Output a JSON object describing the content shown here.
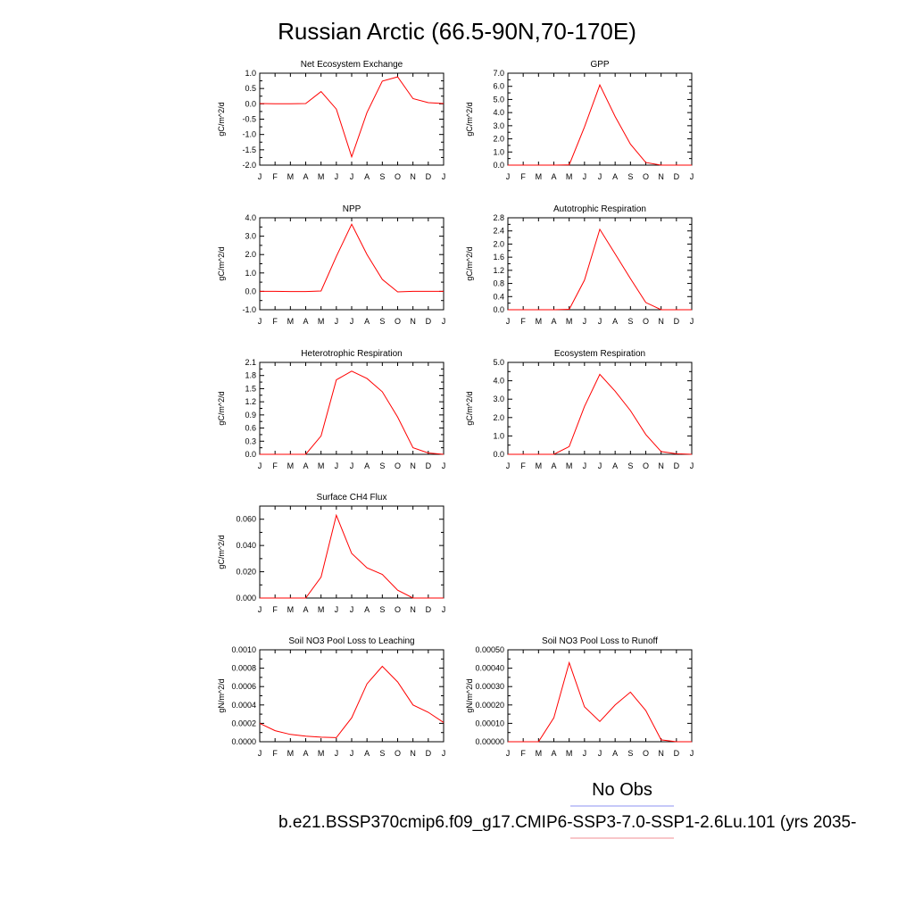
{
  "figure": {
    "title": "Russian Arctic (66.5-90N,70-170E)",
    "legend": [
      {
        "label": "No Obs",
        "color": "#8d93f0"
      },
      {
        "label": "b.e21.BSSP370cmip6.f09_g17.CMIP6-SSP3-7.0-SSP1-2.6Lu.101 (yrs 2035-",
        "color": "#f08d93"
      }
    ],
    "series_color": "#ff0000"
  },
  "chart_data": [
    {
      "type": "line",
      "title": "Net Ecosystem Exchange",
      "ylabel": "gC/m^2/d",
      "x": [
        "J",
        "F",
        "M",
        "A",
        "M",
        "J",
        "J",
        "A",
        "S",
        "O",
        "N",
        "D",
        "J"
      ],
      "ylim": [
        -2.0,
        1.0
      ],
      "yticks": [
        1.0,
        0.5,
        0.0,
        -0.5,
        -1.0,
        -1.5,
        -2.0
      ],
      "ytick_labels": [
        "1.0",
        "0.5",
        "0.0",
        "-0.5",
        "-1.0",
        "-1.5",
        "-2.0"
      ],
      "values": [
        0.01,
        0.0,
        0.0,
        0.01,
        0.4,
        -0.17,
        -1.73,
        -0.28,
        0.74,
        0.88,
        0.17,
        0.04,
        0.01
      ]
    },
    {
      "type": "line",
      "title": "GPP",
      "ylabel": "gC/m^2/d",
      "x": [
        "J",
        "F",
        "M",
        "A",
        "M",
        "J",
        "J",
        "A",
        "S",
        "O",
        "N",
        "D",
        "J"
      ],
      "ylim": [
        0.0,
        7.0
      ],
      "yticks": [
        7.0,
        6.0,
        5.0,
        4.0,
        3.0,
        2.0,
        1.0,
        0.0
      ],
      "ytick_labels": [
        "7.0",
        "6.0",
        "5.0",
        "4.0",
        "3.0",
        "2.0",
        "1.0",
        "0.0"
      ],
      "values": [
        0.0,
        0.0,
        0.0,
        0.0,
        0.02,
        2.9,
        6.1,
        3.7,
        1.6,
        0.2,
        0.0,
        0.0,
        0.0
      ]
    },
    {
      "type": "line",
      "title": "NPP",
      "ylabel": "gC/m^2/d",
      "x": [
        "J",
        "F",
        "M",
        "A",
        "M",
        "J",
        "J",
        "A",
        "S",
        "O",
        "N",
        "D",
        "J"
      ],
      "ylim": [
        -1.0,
        4.0
      ],
      "yticks": [
        4.0,
        3.0,
        2.0,
        1.0,
        0.0,
        -1.0
      ],
      "ytick_labels": [
        "4.0",
        "3.0",
        "2.0",
        "1.0",
        "0.0",
        "-1.0"
      ],
      "values": [
        0.0,
        0.0,
        -0.01,
        -0.01,
        0.02,
        1.9,
        3.65,
        2.0,
        0.65,
        -0.03,
        0.0,
        0.0,
        0.0
      ]
    },
    {
      "type": "line",
      "title": "Autotrophic Respiration",
      "ylabel": "gC/m^2/d",
      "x": [
        "J",
        "F",
        "M",
        "A",
        "M",
        "J",
        "J",
        "A",
        "S",
        "O",
        "N",
        "D",
        "J"
      ],
      "ylim": [
        0.0,
        2.8
      ],
      "yticks": [
        2.8,
        2.4,
        2.0,
        1.6,
        1.2,
        0.8,
        0.4,
        0.0
      ],
      "ytick_labels": [
        "2.8",
        "2.4",
        "2.0",
        "1.6",
        "1.2",
        "0.8",
        "0.4",
        "0.0"
      ],
      "values": [
        0.0,
        0.0,
        0.0,
        0.0,
        0.01,
        0.9,
        2.45,
        1.7,
        0.95,
        0.22,
        0.0,
        0.0,
        0.0
      ]
    },
    {
      "type": "line",
      "title": "Heterotrophic Respiration",
      "ylabel": "gC/m^2/d",
      "x": [
        "J",
        "F",
        "M",
        "A",
        "M",
        "J",
        "J",
        "A",
        "S",
        "O",
        "N",
        "D",
        "J"
      ],
      "ylim": [
        0.0,
        2.1
      ],
      "yticks": [
        2.1,
        1.8,
        1.5,
        1.2,
        0.9,
        0.6,
        0.3,
        0.0
      ],
      "ytick_labels": [
        "2.1",
        "1.8",
        "1.5",
        "1.2",
        "0.9",
        "0.6",
        "0.3",
        "0.0"
      ],
      "values": [
        0.0,
        0.0,
        0.0,
        0.0,
        0.42,
        1.7,
        1.9,
        1.73,
        1.43,
        0.85,
        0.15,
        0.03,
        0.0
      ]
    },
    {
      "type": "line",
      "title": "Ecosystem Respiration",
      "ylabel": "gC/m^2/d",
      "x": [
        "J",
        "F",
        "M",
        "A",
        "M",
        "J",
        "J",
        "A",
        "S",
        "O",
        "N",
        "D",
        "J"
      ],
      "ylim": [
        0.0,
        5.0
      ],
      "yticks": [
        5.0,
        4.0,
        3.0,
        2.0,
        1.0,
        0.0
      ],
      "ytick_labels": [
        "5.0",
        "4.0",
        "3.0",
        "2.0",
        "1.0",
        "0.0"
      ],
      "values": [
        0.0,
        0.0,
        0.0,
        0.0,
        0.42,
        2.6,
        4.35,
        3.43,
        2.38,
        1.08,
        0.15,
        0.03,
        0.0
      ]
    },
    {
      "type": "line",
      "title": "Surface CH4 Flux",
      "ylabel": "gC/m^2/d",
      "x": [
        "J",
        "F",
        "M",
        "A",
        "M",
        "J",
        "J",
        "A",
        "S",
        "O",
        "N",
        "D",
        "J"
      ],
      "ylim": [
        0.0,
        0.07
      ],
      "yticks": [
        0.06,
        0.04,
        0.02,
        0.0
      ],
      "ytick_labels": [
        "0.060",
        "0.040",
        "0.020",
        "0.000"
      ],
      "values": [
        0.0,
        0.0,
        0.0,
        0.0,
        0.016,
        0.063,
        0.034,
        0.023,
        0.018,
        0.006,
        0.0,
        0.0,
        0.0
      ]
    },
    {
      "type": "line",
      "title": "Soil NO3 Pool Loss to Leaching",
      "ylabel": "gN/m^2/d",
      "x": [
        "J",
        "F",
        "M",
        "A",
        "M",
        "J",
        "J",
        "A",
        "S",
        "O",
        "N",
        "D",
        "J"
      ],
      "ylim": [
        0.0,
        0.001
      ],
      "yticks": [
        0.001,
        0.0008,
        0.0006,
        0.0004,
        0.0002,
        0.0
      ],
      "ytick_labels": [
        "0.0010",
        "0.0008",
        "0.0006",
        "0.0004",
        "0.0002",
        "0.0000"
      ],
      "values": [
        0.0002,
        0.00012,
        8e-05,
        6e-05,
        5e-05,
        4.5e-05,
        0.00026,
        0.00063,
        0.00082,
        0.00065,
        0.0004,
        0.00032,
        0.00021
      ]
    },
    {
      "type": "line",
      "title": "Soil NO3 Pool Loss to Runoff",
      "ylabel": "gN/m^2/d",
      "x": [
        "J",
        "F",
        "M",
        "A",
        "M",
        "J",
        "J",
        "A",
        "S",
        "O",
        "N",
        "D",
        "J"
      ],
      "ylim": [
        0.0,
        0.0005
      ],
      "yticks": [
        0.0005,
        0.0004,
        0.0003,
        0.0002,
        0.0001,
        0.0
      ],
      "ytick_labels": [
        "0.00050",
        "0.00040",
        "0.00030",
        "0.00020",
        "0.00010",
        "0.00000"
      ],
      "values": [
        0.0,
        0.0,
        0.0,
        0.00013,
        0.00043,
        0.00019,
        0.00011,
        0.0002,
        0.00027,
        0.00017,
        1e-05,
        0.0,
        0.0
      ]
    }
  ]
}
